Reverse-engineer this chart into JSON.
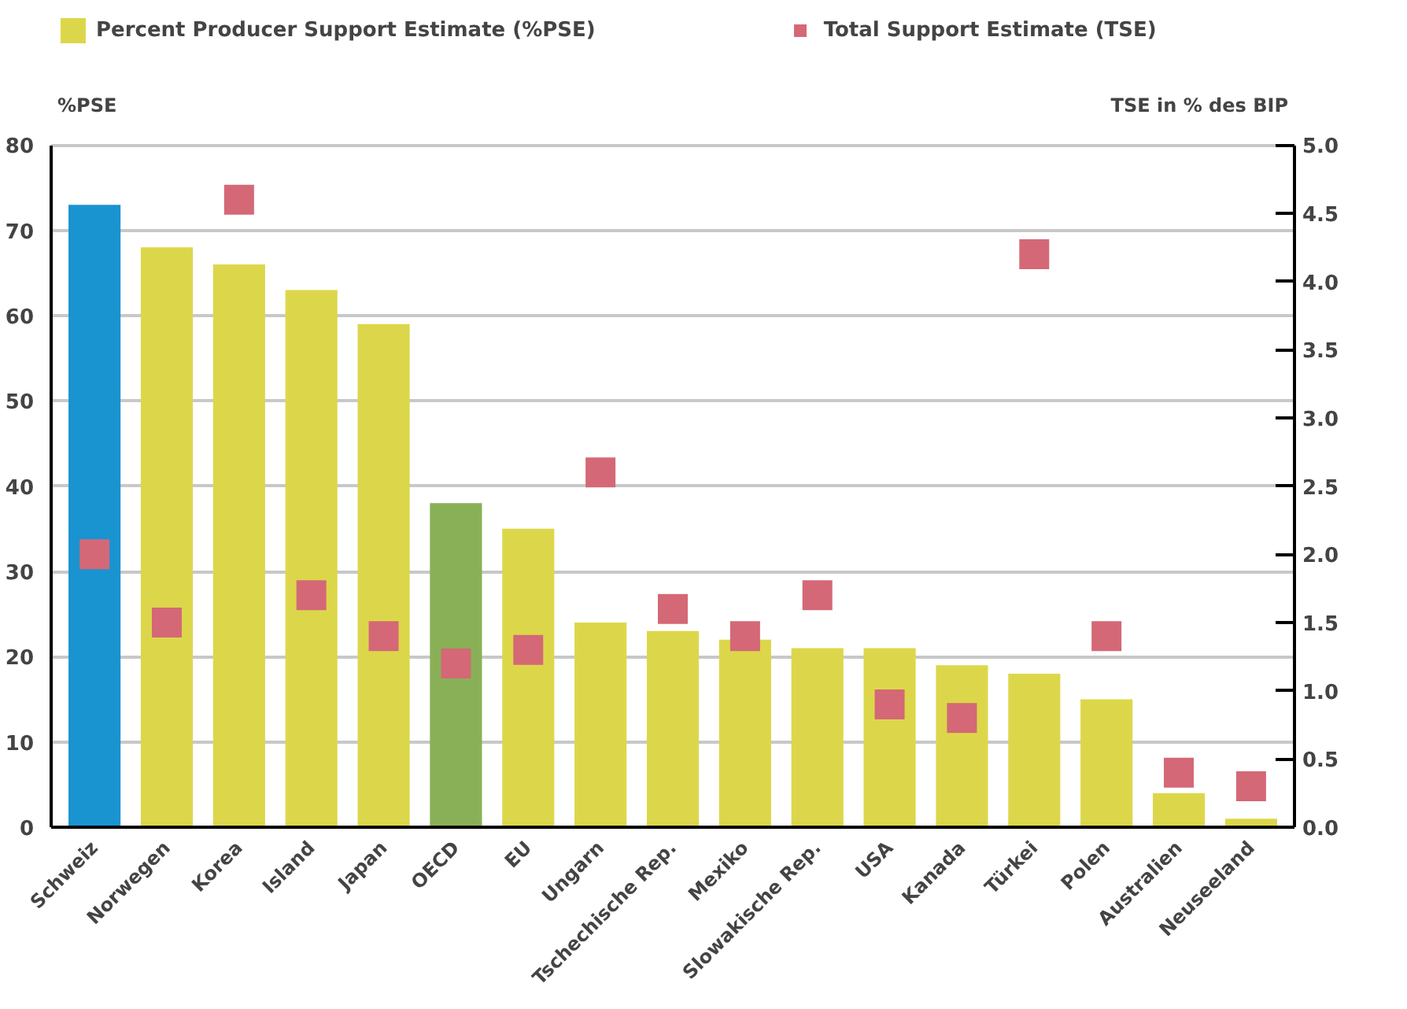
{
  "chart_data": {
    "type": "bar",
    "categories": [
      "Schweiz",
      "Norwegen",
      "Korea",
      "Island",
      "Japan",
      "OECD",
      "EU",
      "Ungarn",
      "Tschechische Rep.",
      "Mexiko",
      "Slowakische Rep.",
      "USA",
      "Kanada",
      "Türkei",
      "Polen",
      "Australien",
      "Neuseeland"
    ],
    "ylabel": "%PSE",
    "y2label": "TSE in % des BIP",
    "ylim": [
      0,
      80
    ],
    "yticks": [
      0,
      10,
      20,
      30,
      40,
      50,
      60,
      70,
      80
    ],
    "y2lim": [
      0.0,
      5.0
    ],
    "y2ticks": [
      {
        "value": 0,
        "label": "0.0"
      },
      {
        "value": 0.5,
        "label": "0.5"
      },
      {
        "value": 1,
        "label": "1.0"
      },
      {
        "value": 1.5,
        "label": "1.5"
      },
      {
        "value": 2,
        "label": "2.0"
      },
      {
        "value": 2.5,
        "label": "2.5"
      },
      {
        "value": 3,
        "label": "3.0"
      },
      {
        "value": 3.5,
        "label": "3.5"
      },
      {
        "value": 4,
        "label": "4.0"
      },
      {
        "value": 4.5,
        "label": "4.5"
      },
      {
        "value": 5,
        "label": "5.0"
      }
    ],
    "grid": "y",
    "legend": "top",
    "series": [
      {
        "name": "Percent Producer Support Estimate (%PSE)",
        "type": "bar",
        "color": "#dcd74a",
        "colors": [
          "#1a93d1",
          "#dcd74a",
          "#dcd74a",
          "#dcd74a",
          "#dcd74a",
          "#8ab057",
          "#dcd74a",
          "#dcd74a",
          "#dcd74a",
          "#dcd74a",
          "#dcd74a",
          "#dcd74a",
          "#dcd74a",
          "#dcd74a",
          "#dcd74a",
          "#dcd74a",
          "#dcd74a"
        ],
        "values": [
          73,
          68,
          66,
          63,
          59,
          38,
          35,
          24,
          23,
          22,
          21,
          21,
          19,
          18,
          15,
          4,
          1
        ]
      },
      {
        "name": "Total Support Estimate (TSE)",
        "type": "scatter",
        "axis": "y2",
        "marker": "square",
        "color": "#d46876",
        "values": [
          2.0,
          1.5,
          4.6,
          1.7,
          1.4,
          1.2,
          1.3,
          2.6,
          1.6,
          1.4,
          1.7,
          0.9,
          0.8,
          4.2,
          1.4,
          0.4,
          0.3
        ]
      }
    ]
  }
}
